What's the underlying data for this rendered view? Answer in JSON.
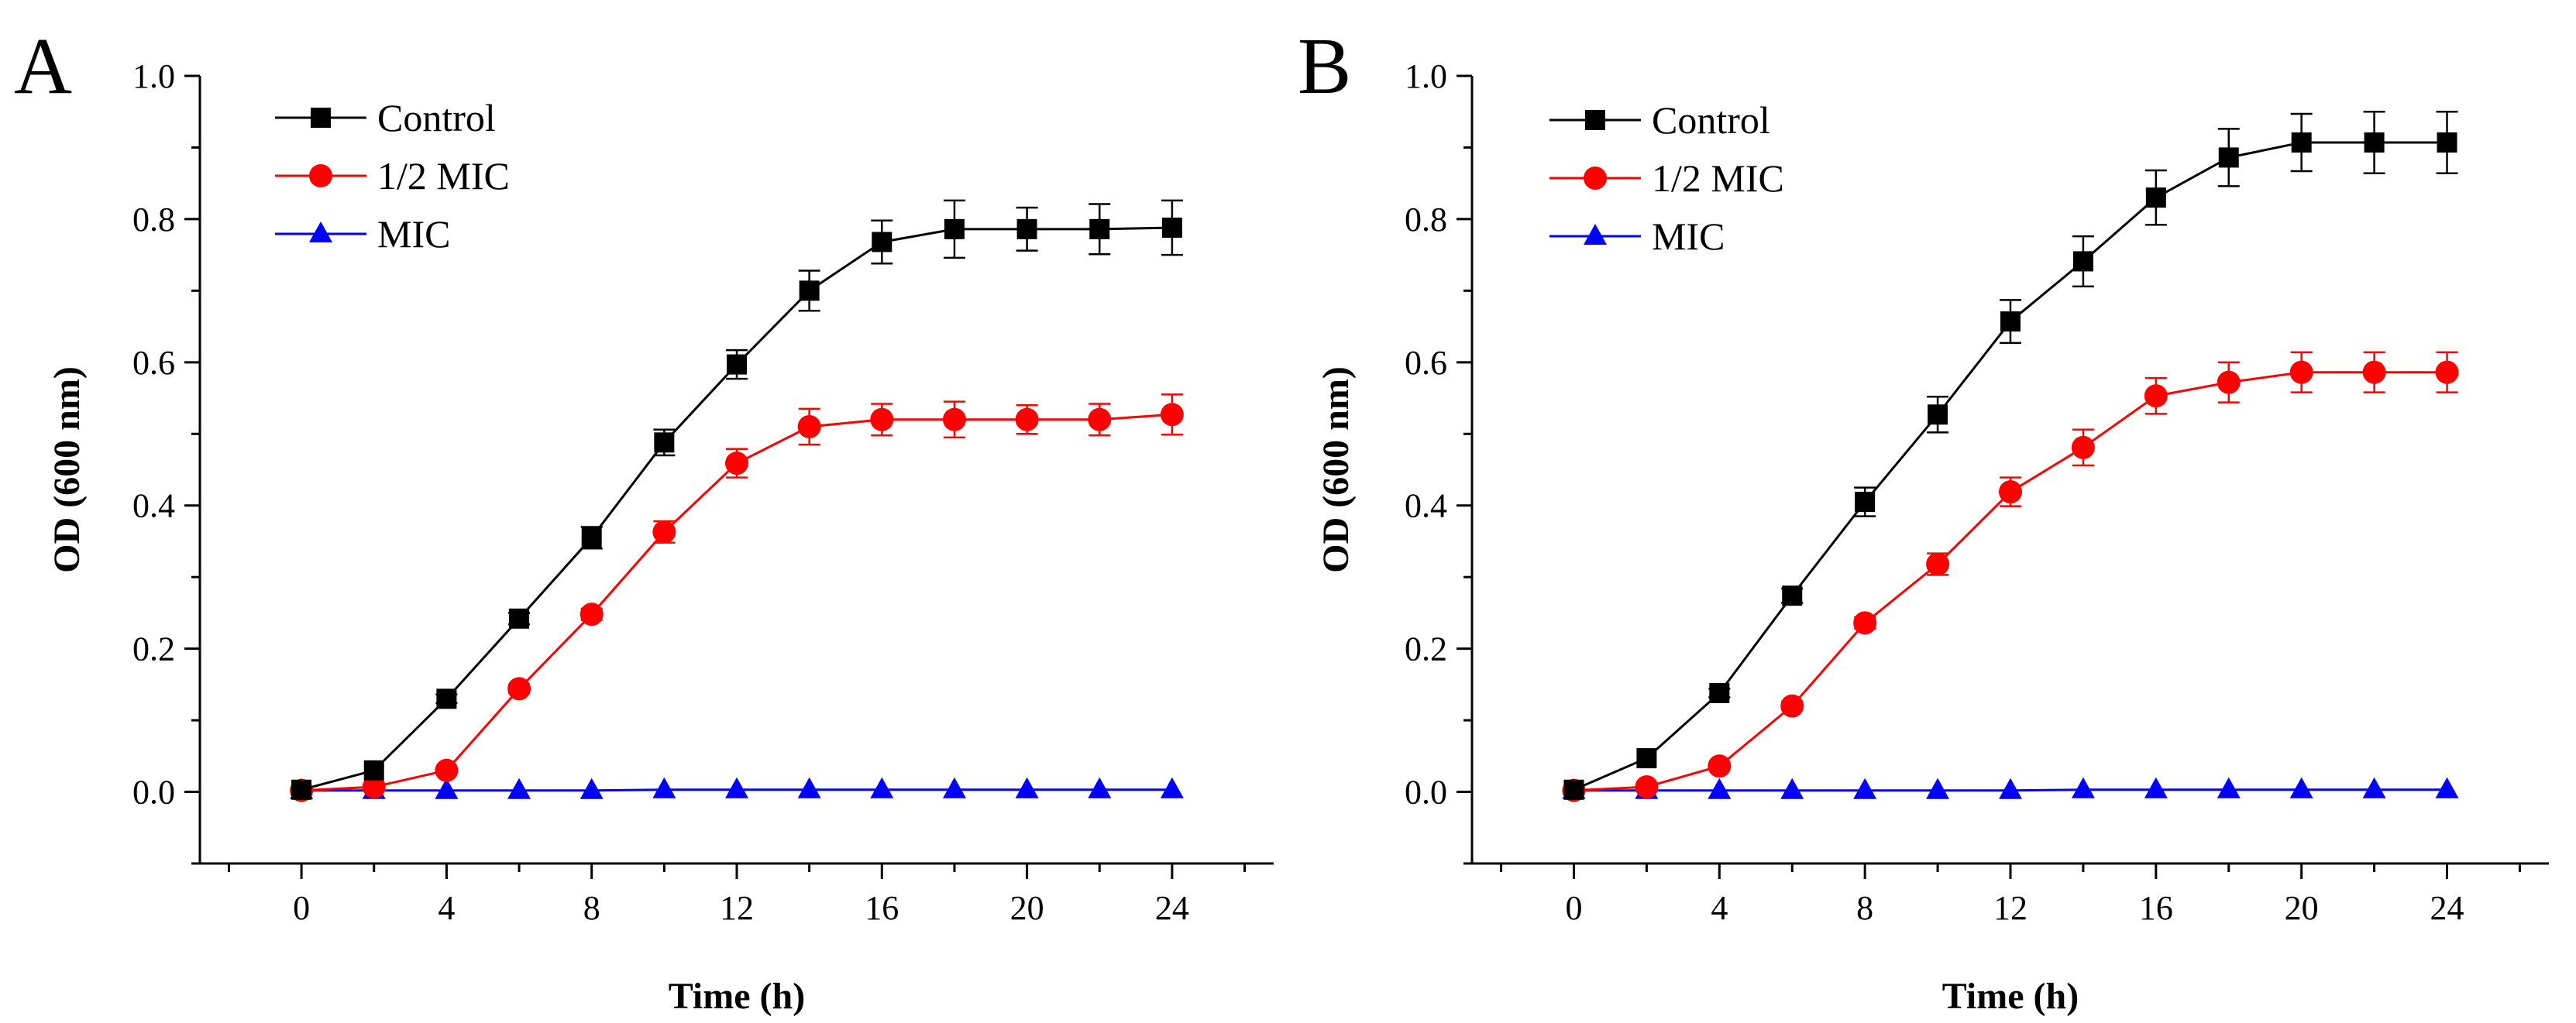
{
  "chart_data": [
    {
      "type": "line",
      "panel_label": "A",
      "xlabel": "Time (h)",
      "ylabel": "OD (600 nm)",
      "xlim": [
        -2.8,
        26.8
      ],
      "ylim": [
        -0.1,
        1.0
      ],
      "xticks": [
        0,
        4,
        8,
        12,
        16,
        20,
        24
      ],
      "yticks": [
        0.0,
        0.2,
        0.4,
        0.6,
        0.8,
        1.0
      ],
      "xtick_labels": [
        "0",
        "4",
        "8",
        "12",
        "16",
        "20",
        "24"
      ],
      "ytick_labels": [
        "0.0",
        "0.2",
        "0.4",
        "0.6",
        "0.8",
        "1.0"
      ],
      "grid": false,
      "legend_position": "top-left",
      "x": [
        0,
        2,
        4,
        6,
        8,
        10,
        12,
        14,
        16,
        18,
        20,
        22,
        24
      ],
      "series": [
        {
          "name": "Control",
          "color": "#000000",
          "marker": "square",
          "values": [
            0.003,
            0.03,
            0.13,
            0.242,
            0.355,
            0.488,
            0.597,
            0.7,
            0.768,
            0.786,
            0.786,
            0.786,
            0.788
          ],
          "errors": [
            0.002,
            0.004,
            0.006,
            0.008,
            0.015,
            0.018,
            0.02,
            0.028,
            0.03,
            0.04,
            0.03,
            0.035,
            0.038
          ]
        },
        {
          "name": "1/2 MIC",
          "color": "#ff0000",
          "marker": "circle",
          "values": [
            0.002,
            0.007,
            0.03,
            0.144,
            0.248,
            0.363,
            0.459,
            0.51,
            0.52,
            0.52,
            0.52,
            0.52,
            0.527
          ],
          "errors": [
            0.002,
            0.002,
            0.004,
            0.006,
            0.008,
            0.015,
            0.02,
            0.025,
            0.022,
            0.025,
            0.02,
            0.022,
            0.028
          ]
        },
        {
          "name": "MIC",
          "color": "#0000ff",
          "marker": "triangle",
          "values": [
            0.002,
            0.002,
            0.002,
            0.002,
            0.002,
            0.003,
            0.003,
            0.003,
            0.003,
            0.003,
            0.003,
            0.003,
            0.003
          ],
          "errors": [
            0,
            0,
            0,
            0,
            0,
            0,
            0,
            0,
            0,
            0,
            0,
            0,
            0
          ]
        }
      ]
    },
    {
      "type": "line",
      "panel_label": "B",
      "xlabel": "Time (h)",
      "ylabel": "OD (600 nm)",
      "xlim": [
        -2.8,
        26.8
      ],
      "ylim": [
        -0.1,
        1.0
      ],
      "xticks": [
        0,
        4,
        8,
        12,
        16,
        20,
        24
      ],
      "yticks": [
        0.0,
        0.2,
        0.4,
        0.6,
        0.8,
        1.0
      ],
      "xtick_labels": [
        "0",
        "4",
        "8",
        "12",
        "16",
        "20",
        "24"
      ],
      "ytick_labels": [
        "0.0",
        "0.2",
        "0.4",
        "0.6",
        "0.8",
        "1.0"
      ],
      "grid": false,
      "legend_position": "top-left",
      "x": [
        0,
        2,
        4,
        6,
        8,
        10,
        12,
        14,
        16,
        18,
        20,
        22,
        24
      ],
      "series": [
        {
          "name": "Control",
          "color": "#000000",
          "marker": "square",
          "values": [
            0.003,
            0.047,
            0.138,
            0.274,
            0.405,
            0.527,
            0.657,
            0.741,
            0.83,
            0.886,
            0.907,
            0.907,
            0.907
          ],
          "errors": [
            0.002,
            0.004,
            0.006,
            0.01,
            0.02,
            0.025,
            0.03,
            0.035,
            0.038,
            0.04,
            0.04,
            0.043,
            0.043
          ]
        },
        {
          "name": "1/2 MIC",
          "color": "#ff0000",
          "marker": "circle",
          "values": [
            0.002,
            0.007,
            0.036,
            0.12,
            0.236,
            0.318,
            0.419,
            0.481,
            0.553,
            0.572,
            0.586,
            0.586,
            0.586
          ],
          "errors": [
            0.002,
            0.002,
            0.004,
            0.006,
            0.008,
            0.015,
            0.02,
            0.025,
            0.025,
            0.028,
            0.028,
            0.028,
            0.028
          ]
        },
        {
          "name": "MIC",
          "color": "#0000ff",
          "marker": "triangle",
          "values": [
            0.002,
            0.002,
            0.002,
            0.002,
            0.002,
            0.002,
            0.002,
            0.003,
            0.003,
            0.003,
            0.003,
            0.003,
            0.003
          ],
          "errors": [
            0,
            0,
            0,
            0,
            0,
            0,
            0,
            0,
            0,
            0,
            0,
            0,
            0
          ]
        }
      ]
    }
  ]
}
